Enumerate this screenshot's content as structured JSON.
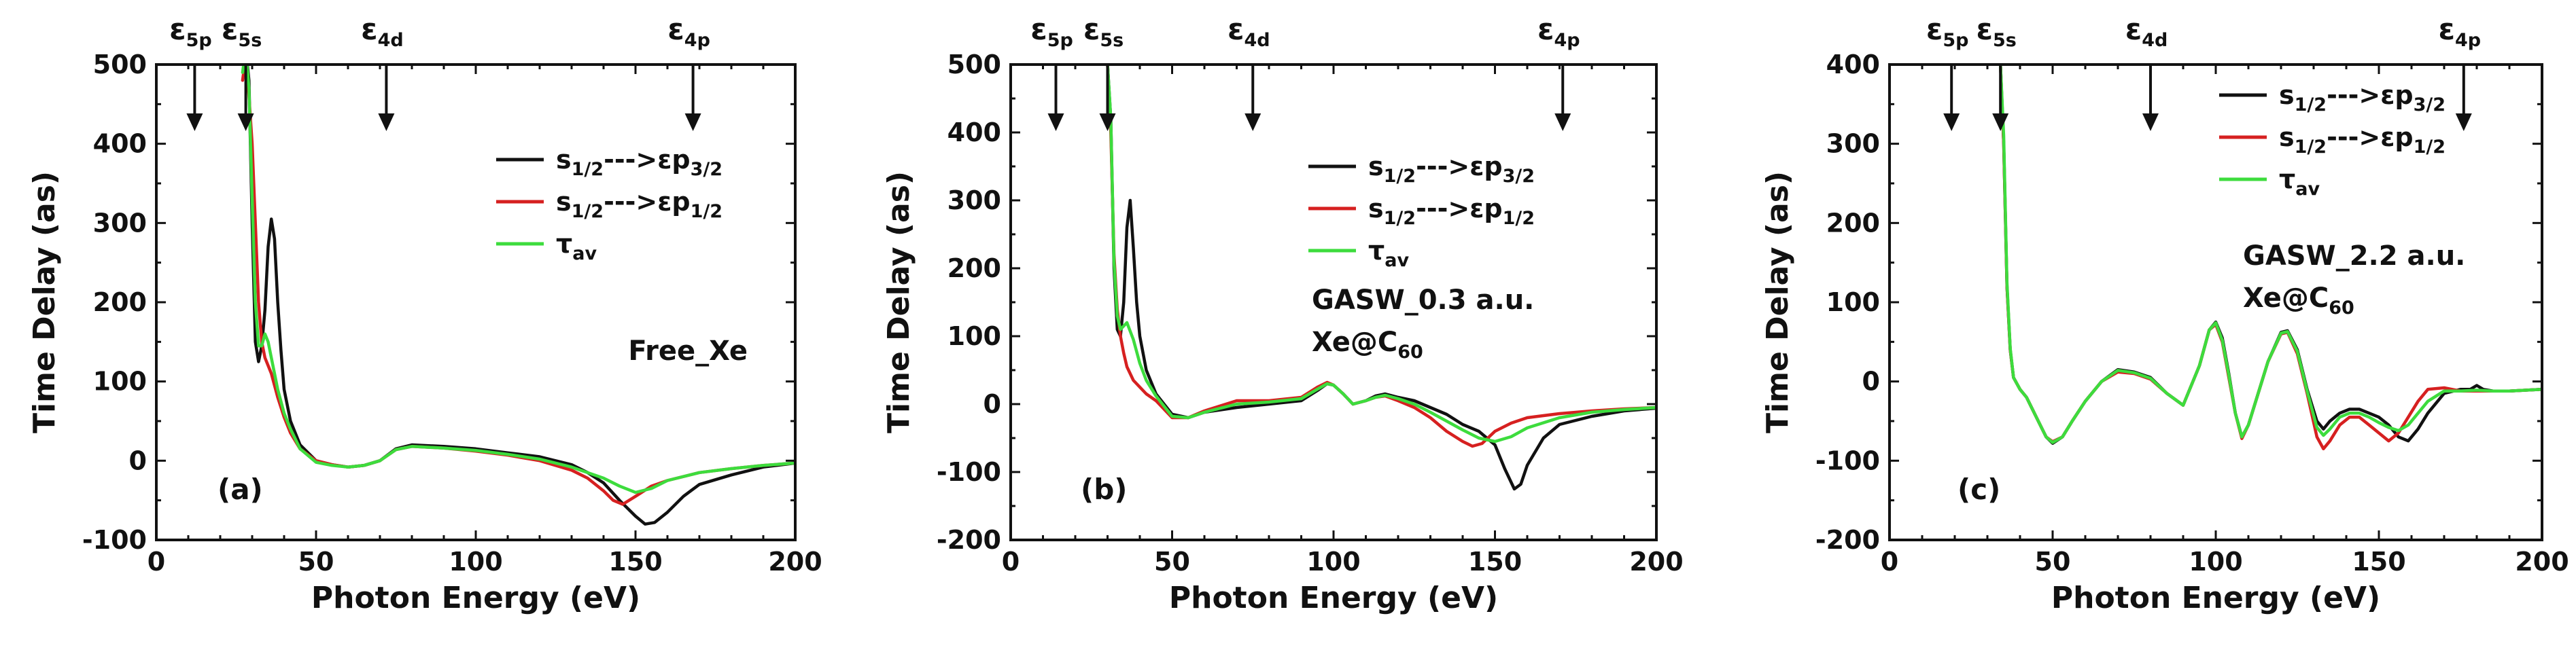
{
  "figure": {
    "series_names": [
      "s1/2--->εp3/2",
      "s1/2--->εp1/2",
      "τav"
    ],
    "colors": {
      "s1/2--->εp3/2": "#111111",
      "s1/2--->εp1/2": "#d62020",
      "τav": "#3ddc3d"
    }
  },
  "chart_data": [
    {
      "type": "line",
      "panel": "(a)",
      "title": "",
      "annotation": [
        "Free_Xe"
      ],
      "xlabel": "Photon Energy (eV)",
      "ylabel": "Time Delay (as)",
      "xlim": [
        0,
        200
      ],
      "ylim": [
        -100,
        500
      ],
      "xticks": [
        0,
        50,
        100,
        150,
        200
      ],
      "yticks": [
        -100,
        0,
        100,
        200,
        300,
        400,
        500
      ],
      "edges": [
        {
          "label": "ε5p",
          "x": 12
        },
        {
          "label": "ε5s",
          "x": 28
        },
        {
          "label": "ε4d",
          "x": 72
        },
        {
          "label": "ε4p",
          "x": 168
        }
      ],
      "legend": [
        "s1/2--->εp3/2",
        "s1/2--->εp1/2",
        "τav"
      ],
      "series": [
        {
          "name": "s1/2--->εp3/2",
          "x": [
            27,
            28,
            29,
            30,
            31,
            32,
            33,
            34,
            35,
            36,
            37,
            38,
            39,
            40,
            42,
            45,
            50,
            55,
            60,
            65,
            70,
            75,
            80,
            90,
            100,
            110,
            120,
            130,
            135,
            140,
            145,
            150,
            153,
            156,
            160,
            165,
            170,
            180,
            190,
            200
          ],
          "y": [
            500,
            520,
            480,
            300,
            150,
            125,
            145,
            190,
            270,
            305,
            280,
            200,
            140,
            90,
            50,
            20,
            0,
            -5,
            -8,
            -6,
            0,
            15,
            20,
            18,
            15,
            10,
            5,
            -5,
            -15,
            -28,
            -50,
            -70,
            -80,
            -78,
            -65,
            -45,
            -30,
            -18,
            -8,
            -3
          ]
        },
        {
          "name": "s1/2--->εp1/2",
          "x": [
            27,
            28,
            29,
            30,
            31,
            32,
            33,
            34,
            35,
            36,
            38,
            40,
            42,
            45,
            50,
            55,
            60,
            65,
            70,
            75,
            80,
            90,
            100,
            110,
            120,
            130,
            135,
            140,
            143,
            146,
            150,
            155,
            160,
            170,
            180,
            190,
            200
          ],
          "y": [
            480,
            510,
            460,
            400,
            300,
            200,
            150,
            130,
            120,
            110,
            80,
            55,
            35,
            15,
            0,
            -5,
            -8,
            -6,
            0,
            14,
            18,
            16,
            12,
            7,
            0,
            -12,
            -22,
            -38,
            -50,
            -55,
            -45,
            -32,
            -25,
            -15,
            -10,
            -6,
            -3
          ]
        },
        {
          "name": "τav",
          "x": [
            27,
            28,
            29,
            30,
            31,
            32,
            33,
            34,
            35,
            36,
            37,
            38,
            40,
            42,
            45,
            50,
            55,
            60,
            65,
            70,
            75,
            80,
            90,
            100,
            110,
            120,
            130,
            140,
            145,
            150,
            155,
            160,
            170,
            180,
            190,
            200
          ],
          "y": [
            490,
            520,
            470,
            330,
            200,
            145,
            145,
            160,
            150,
            130,
            110,
            90,
            60,
            40,
            15,
            -2,
            -6,
            -8,
            -6,
            0,
            14,
            18,
            16,
            13,
            8,
            2,
            -8,
            -22,
            -32,
            -40,
            -35,
            -25,
            -15,
            -10,
            -6,
            -3
          ]
        }
      ]
    },
    {
      "type": "line",
      "panel": "(b)",
      "title": "",
      "annotation": [
        "GASW_0.3 a.u.",
        "Xe@C60"
      ],
      "xlabel": "Photon Energy (eV)",
      "ylabel": "Time Delay (as)",
      "xlim": [
        0,
        200
      ],
      "ylim": [
        -200,
        500
      ],
      "xticks": [
        0,
        50,
        100,
        150,
        200
      ],
      "yticks": [
        -200,
        -100,
        0,
        100,
        200,
        300,
        400,
        500
      ],
      "edges": [
        {
          "label": "ε5p",
          "x": 14
        },
        {
          "label": "ε5s",
          "x": 30
        },
        {
          "label": "ε4d",
          "x": 75
        },
        {
          "label": "ε4p",
          "x": 171
        }
      ],
      "legend": [
        "s1/2--->εp3/2",
        "s1/2--->εp1/2",
        "τav"
      ],
      "series": [
        {
          "name": "s1/2--->εp3/2",
          "x": [
            30,
            31,
            32,
            33,
            34,
            35,
            36,
            37,
            38,
            39,
            40,
            42,
            45,
            50,
            55,
            60,
            70,
            80,
            90,
            95,
            98,
            100,
            103,
            106,
            110,
            113,
            116,
            120,
            125,
            130,
            135,
            140,
            145,
            150,
            153,
            156,
            158,
            160,
            165,
            170,
            180,
            190,
            200
          ],
          "y": [
            500,
            420,
            200,
            110,
            100,
            150,
            260,
            300,
            230,
            150,
            100,
            50,
            15,
            -15,
            -20,
            -12,
            -5,
            0,
            5,
            20,
            30,
            28,
            15,
            0,
            5,
            12,
            15,
            10,
            5,
            -5,
            -15,
            -30,
            -40,
            -60,
            -95,
            -125,
            -118,
            -90,
            -50,
            -30,
            -18,
            -10,
            -6
          ]
        },
        {
          "name": "s1/2--->εp1/2",
          "x": [
            30,
            31,
            32,
            33,
            34,
            35,
            36,
            38,
            40,
            42,
            45,
            50,
            55,
            60,
            70,
            80,
            90,
            95,
            98,
            100,
            103,
            106,
            110,
            113,
            116,
            120,
            125,
            130,
            135,
            140,
            143,
            146,
            150,
            155,
            160,
            170,
            180,
            190,
            200
          ],
          "y": [
            500,
            400,
            220,
            140,
            100,
            75,
            55,
            35,
            25,
            15,
            5,
            -20,
            -20,
            -10,
            5,
            5,
            10,
            25,
            32,
            28,
            15,
            0,
            5,
            10,
            12,
            5,
            -5,
            -20,
            -40,
            -55,
            -62,
            -58,
            -40,
            -28,
            -20,
            -14,
            -10,
            -7,
            -5
          ]
        },
        {
          "name": "τav",
          "x": [
            30,
            31,
            32,
            33,
            34,
            35,
            36,
            38,
            40,
            42,
            45,
            50,
            55,
            60,
            70,
            80,
            90,
            95,
            98,
            100,
            103,
            106,
            110,
            113,
            116,
            120,
            125,
            130,
            135,
            140,
            145,
            150,
            155,
            160,
            170,
            180,
            190,
            200
          ],
          "y": [
            500,
            420,
            210,
            130,
            110,
            115,
            120,
            95,
            60,
            35,
            12,
            -18,
            -20,
            -12,
            0,
            3,
            8,
            22,
            30,
            28,
            15,
            0,
            5,
            10,
            13,
            8,
            0,
            -12,
            -25,
            -38,
            -50,
            -55,
            -48,
            -35,
            -20,
            -12,
            -8,
            -5
          ]
        }
      ]
    },
    {
      "type": "line",
      "panel": "(c)",
      "title": "",
      "annotation": [
        "GASW_2.2 a.u.",
        "Xe@C60"
      ],
      "xlabel": "Photon Energy (eV)",
      "ylabel": "Time Delay (as)",
      "xlim": [
        0,
        200
      ],
      "ylim": [
        -200,
        400
      ],
      "xticks": [
        0,
        50,
        100,
        150,
        200
      ],
      "yticks": [
        -200,
        -100,
        0,
        100,
        200,
        300,
        400
      ],
      "edges": [
        {
          "label": "ε5p",
          "x": 19
        },
        {
          "label": "ε5s",
          "x": 34
        },
        {
          "label": "ε4d",
          "x": 80
        },
        {
          "label": "ε4p",
          "x": 176
        }
      ],
      "legend": [
        "s1/2--->εp3/2",
        "s1/2--->εp1/2",
        "τav"
      ],
      "series": [
        {
          "name": "s1/2--->εp3/2",
          "x": [
            34,
            35,
            36,
            37,
            38,
            40,
            42,
            45,
            48,
            50,
            53,
            56,
            60,
            65,
            70,
            75,
            80,
            85,
            90,
            95,
            98,
            100,
            102,
            104,
            106,
            108,
            110,
            113,
            116,
            120,
            122,
            125,
            128,
            131,
            133,
            135,
            138,
            141,
            144,
            147,
            150,
            153,
            156,
            159,
            162,
            165,
            170,
            175,
            178,
            180,
            182,
            185,
            190,
            200
          ],
          "y": [
            400,
            300,
            120,
            40,
            5,
            -10,
            -20,
            -45,
            -70,
            -78,
            -70,
            -50,
            -25,
            0,
            15,
            12,
            5,
            -15,
            -30,
            20,
            65,
            75,
            55,
            10,
            -40,
            -70,
            -55,
            -15,
            25,
            62,
            64,
            40,
            -10,
            -50,
            -60,
            -50,
            -40,
            -35,
            -35,
            -40,
            -45,
            -55,
            -70,
            -75,
            -60,
            -40,
            -15,
            -10,
            -10,
            -5,
            -10,
            -12,
            -12,
            -10
          ]
        },
        {
          "name": "s1/2--->εp1/2",
          "x": [
            34,
            35,
            36,
            37,
            38,
            40,
            42,
            45,
            48,
            50,
            53,
            56,
            60,
            65,
            70,
            75,
            80,
            85,
            90,
            95,
            98,
            100,
            102,
            104,
            106,
            108,
            110,
            113,
            116,
            120,
            122,
            125,
            128,
            131,
            133,
            135,
            138,
            141,
            144,
            147,
            150,
            153,
            156,
            159,
            162,
            165,
            170,
            175,
            180,
            185,
            190,
            200
          ],
          "y": [
            400,
            300,
            120,
            40,
            5,
            -10,
            -20,
            -45,
            -70,
            -76,
            -70,
            -50,
            -25,
            0,
            12,
            10,
            3,
            -15,
            -30,
            20,
            65,
            72,
            50,
            5,
            -40,
            -72,
            -55,
            -15,
            25,
            60,
            62,
            35,
            -15,
            -70,
            -85,
            -75,
            -55,
            -45,
            -45,
            -55,
            -65,
            -75,
            -65,
            -45,
            -25,
            -10,
            -8,
            -12,
            -12,
            -12,
            -12,
            -10
          ]
        },
        {
          "name": "τav",
          "x": [
            34,
            35,
            36,
            37,
            38,
            40,
            42,
            45,
            48,
            50,
            53,
            56,
            60,
            65,
            70,
            75,
            80,
            85,
            90,
            95,
            98,
            100,
            102,
            104,
            106,
            108,
            110,
            113,
            116,
            120,
            122,
            125,
            128,
            131,
            133,
            135,
            138,
            141,
            144,
            147,
            150,
            153,
            156,
            159,
            162,
            165,
            170,
            175,
            180,
            185,
            190,
            200
          ],
          "y": [
            400,
            310,
            125,
            42,
            5,
            -10,
            -20,
            -45,
            -70,
            -77,
            -70,
            -50,
            -25,
            0,
            14,
            11,
            4,
            -15,
            -30,
            20,
            65,
            74,
            52,
            8,
            -40,
            -70,
            -55,
            -15,
            25,
            61,
            63,
            38,
            -12,
            -58,
            -68,
            -60,
            -45,
            -40,
            -40,
            -45,
            -52,
            -58,
            -62,
            -55,
            -40,
            -25,
            -12,
            -12,
            -11,
            -12,
            -12,
            -10
          ]
        }
      ]
    }
  ]
}
